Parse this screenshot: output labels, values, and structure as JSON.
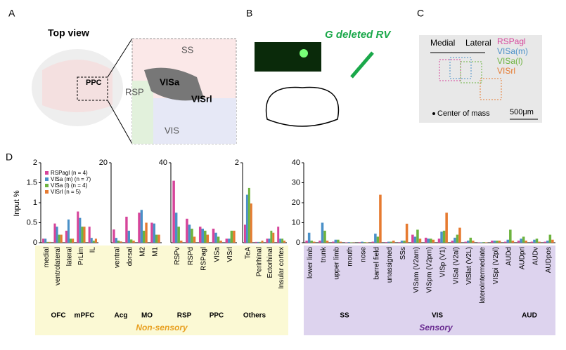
{
  "panels": {
    "a": {
      "label": "A",
      "title": "Top view",
      "inset": "PPC",
      "regions": [
        "SS",
        "RSP",
        "VISa",
        "VISrl",
        "VIS"
      ]
    },
    "b": {
      "label": "B",
      "title": "G deleted RV"
    },
    "c": {
      "label": "C",
      "medial": "Medial",
      "lateral": "Lateral",
      "legend": [
        "RSPagl",
        "VISa(m)",
        "VISa(l)",
        "VISrl"
      ],
      "center": "Center of mass",
      "scale": "500μm"
    }
  },
  "panel_d": {
    "label": "D",
    "groups": [
      "OFC",
      "mPFC",
      "Acg",
      "MO",
      "RSP",
      "PPC",
      "Others",
      "SS",
      "VIS",
      "AUD"
    ],
    "non_sensory": "Non-sensory",
    "sensory": "Sensory"
  },
  "chart_data": [
    {
      "type": "bar",
      "ylabel": "Input %",
      "ylim": [
        0,
        2
      ],
      "yticks": [
        0,
        0.5,
        1,
        1.5,
        2
      ],
      "categories": [
        "medial",
        "ventrolateral",
        "lateral",
        "PrLim",
        "IL"
      ],
      "series": [
        {
          "name": "RSPagl (n = 4)",
          "color": "#d6449a",
          "values": [
            0.1,
            0.48,
            0.3,
            0.78,
            0.4
          ]
        },
        {
          "name": "VISa (m) (n = 7)",
          "color": "#4a90c8",
          "values": [
            0.1,
            0.4,
            0.58,
            0.62,
            0.12
          ]
        },
        {
          "name": "VISa (l) (n = 4)",
          "color": "#6db33f",
          "values": [
            0.02,
            0.2,
            0.1,
            0.4,
            0.05
          ]
        },
        {
          "name": "VISrl (n = 5)",
          "color": "#e67a30",
          "values": [
            0.02,
            0.2,
            0.1,
            0.4,
            0.1
          ]
        }
      ]
    },
    {
      "type": "bar",
      "ylim": [
        0,
        20
      ],
      "yticks": [
        20
      ],
      "categories": [
        "ventral",
        "dorsal",
        "M2",
        "M1"
      ],
      "series": [
        {
          "values": [
            3.3,
            6.5,
            7.5,
            5
          ]
        },
        {
          "values": [
            1.2,
            3,
            8.2,
            4.8
          ]
        },
        {
          "values": [
            0.5,
            0.8,
            3,
            2
          ]
        },
        {
          "values": [
            0.3,
            0.5,
            5,
            2
          ]
        }
      ]
    },
    {
      "type": "bar",
      "ylim": [
        0,
        40
      ],
      "yticks": [
        40
      ],
      "categories": [
        "RSPv",
        "RSPd",
        "RSPagl",
        "VISa",
        "VISrl"
      ],
      "series": [
        {
          "values": [
            31,
            12,
            8,
            7,
            2
          ]
        },
        {
          "values": [
            15,
            9,
            7,
            5,
            2
          ]
        },
        {
          "values": [
            8,
            7,
            6,
            3,
            6
          ]
        },
        {
          "values": [
            1,
            3,
            4,
            1,
            6
          ]
        }
      ]
    },
    {
      "type": "bar",
      "ylim": [
        0,
        2
      ],
      "yticks": [
        2
      ],
      "categories": [
        "TeA",
        "Perirhinal",
        "Ectorhinal",
        "Insular cortex"
      ],
      "series": [
        {
          "values": [
            0.45,
            0.02,
            0.1,
            0.4
          ]
        },
        {
          "values": [
            1.2,
            0.02,
            0.1,
            0.1
          ]
        },
        {
          "values": [
            1.37,
            0.02,
            0.3,
            0.1
          ]
        },
        {
          "values": [
            0.98,
            0.05,
            0.25,
            0.05
          ]
        }
      ]
    },
    {
      "type": "bar",
      "ylim": [
        0,
        40
      ],
      "yticks": [
        0,
        10,
        20,
        30,
        40
      ],
      "categories": [
        "lower limb",
        "trunk",
        "upper limb",
        "mouth",
        "nose",
        "barrel field",
        "unassigned",
        "SSs",
        "VISam (V2am)",
        "VISpm (V2pm)",
        "VISp (V1)",
        "VISal (V2al)",
        "VISlat (V2L)",
        "lateroIntermediate",
        "VISpi (V2pl)",
        "AUDd",
        "AUDpri",
        "AUDv",
        "AUDpos"
      ],
      "series": [
        {
          "values": [
            1,
            1,
            0.5,
            0.2,
            0.3,
            0.5,
            0.3,
            0.3,
            4,
            2.5,
            2,
            1,
            0.5,
            0.2,
            1,
            0.5,
            1,
            0.5,
            0.5
          ]
        },
        {
          "values": [
            5,
            10,
            1.5,
            0.3,
            0.5,
            4.5,
            0.5,
            1,
            3,
            2,
            5.5,
            2.5,
            1,
            0.2,
            1,
            1.5,
            2,
            1.5,
            1
          ]
        },
        {
          "values": [
            1,
            6,
            1.5,
            0.2,
            0.3,
            3,
            0.5,
            1,
            6.5,
            2,
            6,
            4,
            2.5,
            0.3,
            1,
            6.5,
            3,
            2,
            4
          ]
        },
        {
          "values": [
            0.5,
            1,
            0.5,
            0.1,
            0.2,
            24,
            1,
            9.5,
            2,
            1.5,
            15,
            7.5,
            1,
            0.2,
            1,
            1,
            1,
            0.5,
            1.5
          ]
        }
      ]
    }
  ]
}
